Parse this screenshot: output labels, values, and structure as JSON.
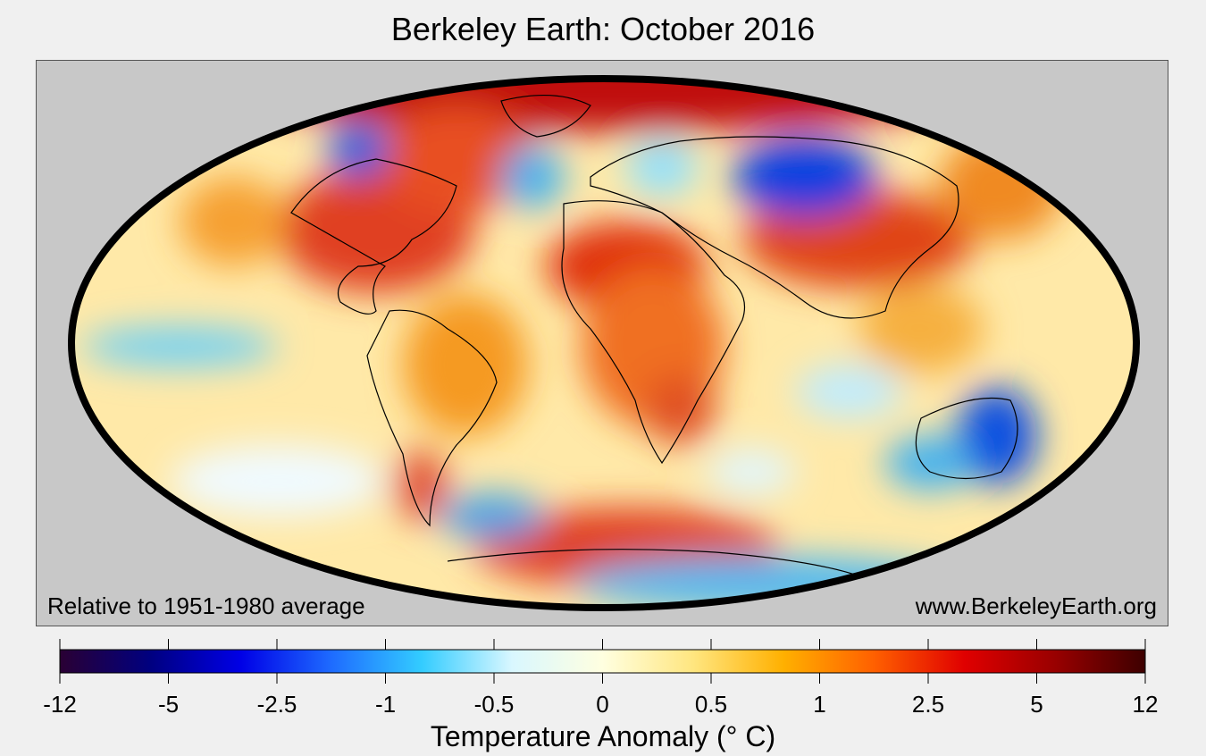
{
  "title": "Berkeley Earth: October 2016",
  "note_left": "Relative to 1951-1980 average",
  "note_right": "www.BerkeleyEarth.org",
  "colorbar": {
    "label": "Temperature Anomaly (° C)",
    "ticks": [
      "-12",
      "-5",
      "-2.5",
      "-1",
      "-0.5",
      "0",
      "0.5",
      "1",
      "2.5",
      "5",
      "12"
    ],
    "colors": [
      "#2a0033",
      "#000080",
      "#0000e6",
      "#1e6bff",
      "#33ccff",
      "#d9f7ff",
      "#ffffe0",
      "#ffe680",
      "#ffb000",
      "#ff6000",
      "#e00000",
      "#990000",
      "#3d0000"
    ]
  },
  "colors": {
    "background": "#f0f0f0",
    "map_background": "#c8c8c8",
    "ocean_base": "#ffe8a0"
  }
}
